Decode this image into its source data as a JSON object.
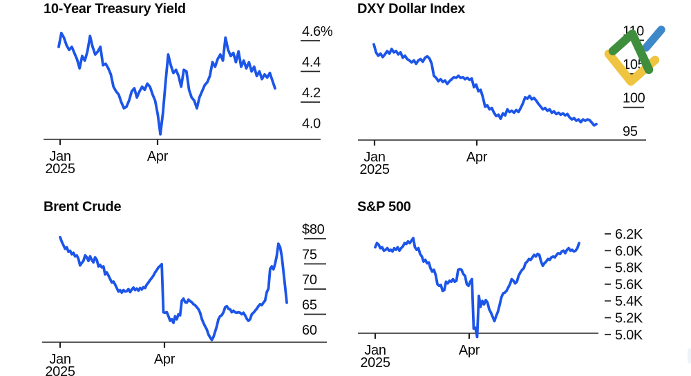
{
  "page": {
    "background": "#ffffff"
  },
  "branding": {
    "logo": "litefinance-logo-mark",
    "colors": {
      "green": "#3E8E3E",
      "blue": "#3E87C9",
      "yellow": "#EFC440"
    }
  },
  "style": {
    "line_color": "#1C55E8",
    "axis_color": "#222222",
    "text_color": "#0a0a0a"
  },
  "chart_data": [
    {
      "id": "treasury-yield",
      "type": "line",
      "title": "10-Year Treasury Yield",
      "ylim": [
        3.95,
        4.69
      ],
      "grid": false,
      "legend": "none",
      "yticks": [
        {
          "label": "4.6%",
          "value": 4.6,
          "dash": true
        },
        {
          "label": "4.4",
          "value": 4.4,
          "dash": true
        },
        {
          "label": "4.2",
          "value": 4.2,
          "dash": true
        },
        {
          "label": "4.0",
          "value": 4.0,
          "dash": false
        }
      ],
      "xticks": [
        {
          "label": "Jan",
          "sublabel": "2025"
        },
        {
          "label": "Apr"
        }
      ],
      "values": [
        4.56,
        4.65,
        4.62,
        4.57,
        4.54,
        4.56,
        4.52,
        4.48,
        4.42,
        4.5,
        4.47,
        4.53,
        4.63,
        4.56,
        4.51,
        4.53,
        4.56,
        4.44,
        4.45,
        4.42,
        4.38,
        4.3,
        4.27,
        4.25,
        4.2,
        4.16,
        4.17,
        4.21,
        4.27,
        4.29,
        4.23,
        4.27,
        4.3,
        4.28,
        4.32,
        4.3,
        4.25,
        4.21,
        4.12,
        3.99,
        4.13,
        4.33,
        4.51,
        4.44,
        4.39,
        4.41,
        4.37,
        4.3,
        4.41,
        4.4,
        4.28,
        4.23,
        4.21,
        4.16,
        4.23,
        4.27,
        4.31,
        4.33,
        4.37,
        4.46,
        4.43,
        4.48,
        4.51,
        4.47,
        4.62,
        4.54,
        4.5,
        4.52,
        4.46,
        4.53,
        4.43,
        4.47,
        4.42,
        4.46,
        4.4,
        4.43,
        4.37,
        4.4,
        4.35,
        4.38,
        4.36,
        4.39,
        4.34,
        4.29
      ]
    },
    {
      "id": "dxy-dollar-index",
      "type": "line",
      "title": "DXY Dollar Index",
      "ylim": [
        95.0,
        111.8
      ],
      "grid": false,
      "legend": "none",
      "yticks": [
        {
          "label": "110",
          "value": 110,
          "dash": true
        },
        {
          "label": "105",
          "value": 105,
          "dash": true
        },
        {
          "label": "100",
          "value": 100,
          "dash": true
        },
        {
          "label": "95",
          "value": 95,
          "dash": false
        }
      ],
      "xticks": [
        {
          "label": "Jan",
          "sublabel": "2025"
        },
        {
          "label": "Apr"
        }
      ],
      "values": [
        109.4,
        108.2,
        107.7,
        108.0,
        107.5,
        107.9,
        108.4,
        108.0,
        108.7,
        108.2,
        108.4,
        107.9,
        108.2,
        107.4,
        107.7,
        107.2,
        107.0,
        106.7,
        107.0,
        106.5,
        107.0,
        107.2,
        106.8,
        107.4,
        107.6,
        107.3,
        106.5,
        104.7,
        104.4,
        103.9,
        104.2,
        103.8,
        104.0,
        103.5,
        103.9,
        104.2,
        104.5,
        104.4,
        104.7,
        104.4,
        104.5,
        104.2,
        104.4,
        104.1,
        104.3,
        103.0,
        103.4,
        102.4,
        102.6,
        101.5,
        100.1,
        100.3,
        99.7,
        99.9,
        99.2,
        98.7,
        98.9,
        98.3,
        99.1,
        98.8,
        99.7,
        99.3,
        99.5,
        99.2,
        99.6,
        99.3,
        99.9,
        100.6,
        101.5,
        101.3,
        101.7,
        101.2,
        101.4,
        101.0,
        100.5,
        100.1,
        99.7,
        99.9,
        99.5,
        99.7,
        99.2,
        99.4,
        99.0,
        99.2,
        98.9,
        99.1,
        98.8,
        99.0,
        98.5,
        98.2,
        98.4,
        98.0,
        98.2,
        97.8,
        98.2,
        98.0,
        98.2,
        98.1,
        97.7,
        97.3,
        97.5
      ]
    },
    {
      "id": "brent-crude",
      "type": "line",
      "title": "Brent Crude",
      "ylim": [
        59.4,
        82.5
      ],
      "grid": false,
      "legend": "none",
      "yticks": [
        {
          "label": "$80",
          "value": 80,
          "dash": true
        },
        {
          "label": "75",
          "value": 75,
          "dash": true
        },
        {
          "label": "70",
          "value": 70,
          "dash": true
        },
        {
          "label": "65",
          "value": 65,
          "dash": true
        },
        {
          "label": "60",
          "value": 60,
          "dash": false
        }
      ],
      "xticks": [
        {
          "label": "Jan",
          "sublabel": "2025"
        },
        {
          "label": "Apr"
        }
      ],
      "values": [
        80.3,
        79.4,
        78.7,
        78.0,
        78.3,
        77.4,
        77.6,
        76.9,
        77.2,
        76.5,
        76.7,
        76.0,
        74.7,
        75.2,
        75.6,
        76.7,
        76.3,
        75.6,
        76.5,
        75.8,
        75.3,
        76.3,
        75.8,
        74.5,
        74.8,
        74.3,
        74.5,
        72.9,
        73.3,
        72.7,
        72.0,
        71.3,
        71.5,
        70.9,
        70.2,
        69.5,
        69.8,
        69.3,
        69.8,
        69.5,
        69.6,
        70.0,
        69.4,
        69.9,
        70.3,
        69.8,
        70.1,
        69.7,
        70.2,
        69.9,
        70.4,
        70.2,
        70.9,
        71.3,
        71.8,
        72.2,
        72.7,
        73.3,
        73.8,
        74.3,
        74.6,
        74.95,
        65.4,
        65.3,
        65.4,
        64.6,
        63.7,
        64.0,
        63.3,
        64.6,
        64.0,
        65.0,
        64.8,
        67.7,
        68.1,
        67.4,
        67.3,
        67.9,
        67.6,
        67.4,
        67.0,
        66.8,
        66.4,
        66.0,
        65.3,
        64.1,
        63.3,
        62.6,
        62.0,
        61.0,
        60.4,
        59.9,
        60.5,
        61.5,
        62.6,
        64.0,
        64.6,
        64.8,
        65.4,
        66.4,
        66.6,
        66.1,
        66.0,
        65.4,
        65.7,
        65.4,
        65.3,
        65.4,
        65.3,
        65.0,
        65.3,
        64.8,
        64.1,
        63.7,
        64.0,
        65.0,
        65.3,
        65.7,
        66.1,
        66.6,
        67.0,
        66.8,
        67.3,
        67.7,
        69.4,
        70.1,
        74.0,
        74.5,
        73.9,
        75.0,
        76.6,
        79.0,
        78.3,
        76.5,
        73.5,
        70.5,
        67.3
      ]
    },
    {
      "id": "sp-500",
      "type": "line",
      "title": "S&P 500",
      "ylim": [
        4.96,
        6.25
      ],
      "unit": "K",
      "grid": false,
      "legend": "none",
      "yticks": [
        {
          "label": "6.2K",
          "value": 6.2,
          "dash": true
        },
        {
          "label": "6.0K",
          "value": 6.0,
          "dash": true
        },
        {
          "label": "5.8K",
          "value": 5.8,
          "dash": true
        },
        {
          "label": "5.6K",
          "value": 5.6,
          "dash": true
        },
        {
          "label": "5.4K",
          "value": 5.4,
          "dash": true
        },
        {
          "label": "5.2K",
          "value": 5.2,
          "dash": true
        },
        {
          "label": "5.0K",
          "value": 5.0,
          "dash": true
        }
      ],
      "xticks": [
        {
          "label": "Jan",
          "sublabel": "2025"
        },
        {
          "label": "Apr"
        }
      ],
      "values": [
        6.04,
        6.09,
        6.07,
        6.03,
        6.04,
        6.0,
        6.01,
        6.03,
        6.0,
        6.01,
        5.99,
        6.03,
        6.01,
        6.04,
        6.0,
        6.03,
        6.05,
        6.09,
        6.08,
        6.11,
        6.09,
        6.12,
        6.15,
        6.04,
        6.01,
        6.03,
        5.96,
        5.93,
        5.87,
        5.89,
        5.85,
        5.86,
        5.79,
        5.75,
        5.77,
        5.71,
        5.6,
        5.58,
        5.59,
        5.52,
        5.53,
        5.63,
        5.61,
        5.64,
        5.63,
        5.66,
        5.63,
        5.64,
        5.77,
        5.78,
        5.77,
        5.72,
        5.7,
        5.6,
        5.58,
        5.63,
        5.66,
        5.07,
        5.08,
        4.97,
        5.46,
        5.33,
        5.4,
        5.36,
        5.41,
        5.38,
        5.3,
        5.26,
        5.21,
        5.16,
        5.22,
        5.27,
        5.35,
        5.44,
        5.49,
        5.5,
        5.52,
        5.56,
        5.6,
        5.66,
        5.64,
        5.61,
        5.63,
        5.7,
        5.74,
        5.77,
        5.79,
        5.85,
        5.87,
        5.9,
        5.89,
        5.92,
        5.95,
        5.93,
        5.96,
        5.95,
        5.87,
        5.82,
        5.85,
        5.87,
        5.9,
        5.89,
        5.92,
        5.93,
        5.92,
        5.95,
        5.97,
        5.96,
        5.99,
        6.0,
        5.97,
        6.01,
        6.03,
        6.0,
        6.01,
        5.99,
        6.0,
        6.03,
        6.09
      ]
    }
  ]
}
